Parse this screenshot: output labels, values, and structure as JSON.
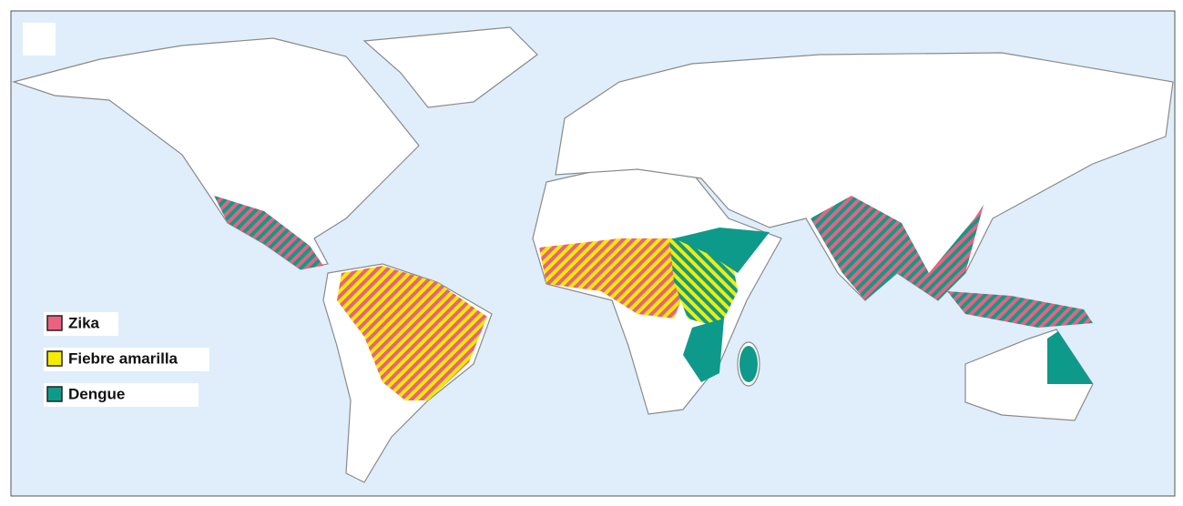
{
  "legend": {
    "items": [
      {
        "label": "Zika",
        "color": "#e9627f"
      },
      {
        "label": "Fiebre amarilla",
        "color": "#f5ec00"
      },
      {
        "label": "Dengue",
        "color": "#0e9a8a"
      }
    ]
  }
}
